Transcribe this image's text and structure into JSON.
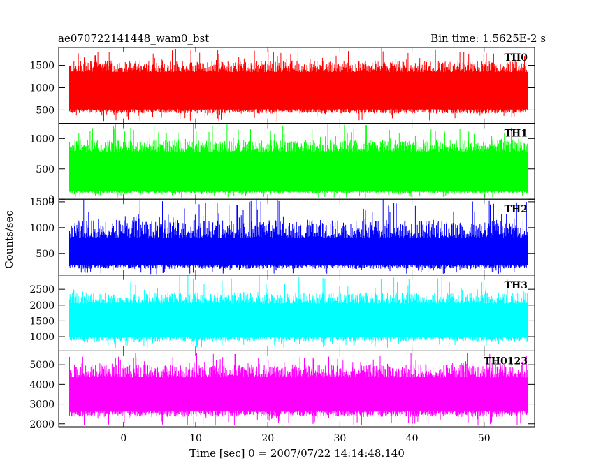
{
  "chart_data": {
    "type": "line",
    "title_left": "ae070722141448_wam0_bst",
    "title_right": "Bin time: 1.5625E-2 s",
    "xlabel": "Time [sec] 0 = 2007/07/22 14:14:48.140",
    "ylabel": "Counts/sec",
    "xlim": [
      -9,
      57
    ],
    "xticks": [
      0,
      10,
      20,
      30,
      40,
      50
    ],
    "data_x_range": [
      -7.5,
      56
    ],
    "grid": false,
    "panels": [
      {
        "name": "TH0",
        "color": "#ff0000",
        "ylim": [
          200,
          1900
        ],
        "yticks": [
          500,
          1000,
          1500
        ],
        "envelope": {
          "lower_typical": 420,
          "body_low": 520,
          "body_high": 1350,
          "upper_typical": 1600,
          "min": 250,
          "max": 1900
        }
      },
      {
        "name": "TH1",
        "color": "#00ff00",
        "ylim": [
          0,
          1250
        ],
        "yticks": [
          0,
          500,
          1000
        ],
        "envelope": {
          "lower_typical": 100,
          "body_low": 130,
          "body_high": 780,
          "upper_typical": 980,
          "min": 25,
          "max": 1250
        }
      },
      {
        "name": "TH2",
        "color": "#0000ff",
        "ylim": [
          80,
          1550
        ],
        "yticks": [
          500,
          1000,
          1500
        ],
        "envelope": {
          "lower_typical": 200,
          "body_low": 280,
          "body_high": 800,
          "upper_typical": 1150,
          "min": 100,
          "max": 1550
        }
      },
      {
        "name": "TH3",
        "color": "#00ffff",
        "ylim": [
          550,
          2950
        ],
        "yticks": [
          1000,
          1500,
          2000,
          2500
        ],
        "envelope": {
          "lower_typical": 850,
          "body_low": 1000,
          "body_high": 2050,
          "upper_typical": 2400,
          "min": 650,
          "max": 2950
        }
      },
      {
        "name": "TH0123",
        "color": "#ff00ff",
        "ylim": [
          1850,
          5700
        ],
        "yticks": [
          2000,
          3000,
          4000,
          5000
        ],
        "envelope": {
          "lower_typical": 2350,
          "body_low": 2650,
          "body_high": 4350,
          "upper_typical": 5000,
          "min": 1900,
          "max": 5600
        }
      }
    ]
  }
}
